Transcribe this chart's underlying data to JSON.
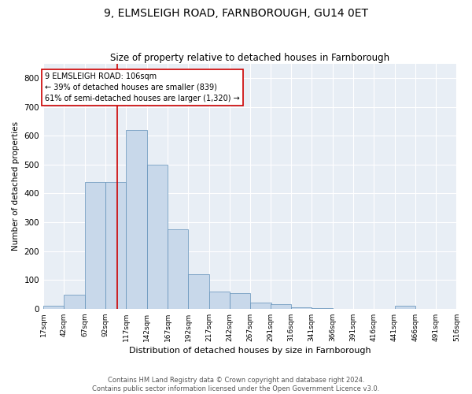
{
  "title": "9, ELMSLEIGH ROAD, FARNBOROUGH, GU14 0ET",
  "subtitle": "Size of property relative to detached houses in Farnborough",
  "xlabel": "Distribution of detached houses by size in Farnborough",
  "ylabel": "Number of detached properties",
  "bin_edges": [
    17,
    42,
    67,
    92,
    117,
    142,
    167,
    192,
    217,
    242,
    267,
    291,
    316,
    341,
    366,
    391,
    416,
    441,
    466,
    491,
    516
  ],
  "bar_heights": [
    10,
    50,
    440,
    440,
    620,
    500,
    275,
    120,
    60,
    55,
    22,
    15,
    5,
    2,
    0,
    0,
    0,
    10,
    0,
    0
  ],
  "bar_color": "#c8d8ea",
  "bar_edge_color": "#6090b8",
  "property_size": 106,
  "vline_color": "#cc0000",
  "annotation_text": "9 ELMSLEIGH ROAD: 106sqm\n← 39% of detached houses are smaller (839)\n61% of semi-detached houses are larger (1,320) →",
  "annotation_box_edge_color": "#cc0000",
  "footer_line1": "Contains HM Land Registry data © Crown copyright and database right 2024.",
  "footer_line2": "Contains public sector information licensed under the Open Government Licence v3.0.",
  "background_color": "#e8eef5",
  "ylim": [
    0,
    850
  ],
  "yticks": [
    0,
    100,
    200,
    300,
    400,
    500,
    600,
    700,
    800
  ],
  "tick_labels": [
    "17sqm",
    "42sqm",
    "67sqm",
    "92sqm",
    "117sqm",
    "142sqm",
    "167sqm",
    "192sqm",
    "217sqm",
    "242sqm",
    "267sqm",
    "291sqm",
    "316sqm",
    "341sqm",
    "366sqm",
    "391sqm",
    "416sqm",
    "441sqm",
    "466sqm",
    "491sqm",
    "516sqm"
  ]
}
